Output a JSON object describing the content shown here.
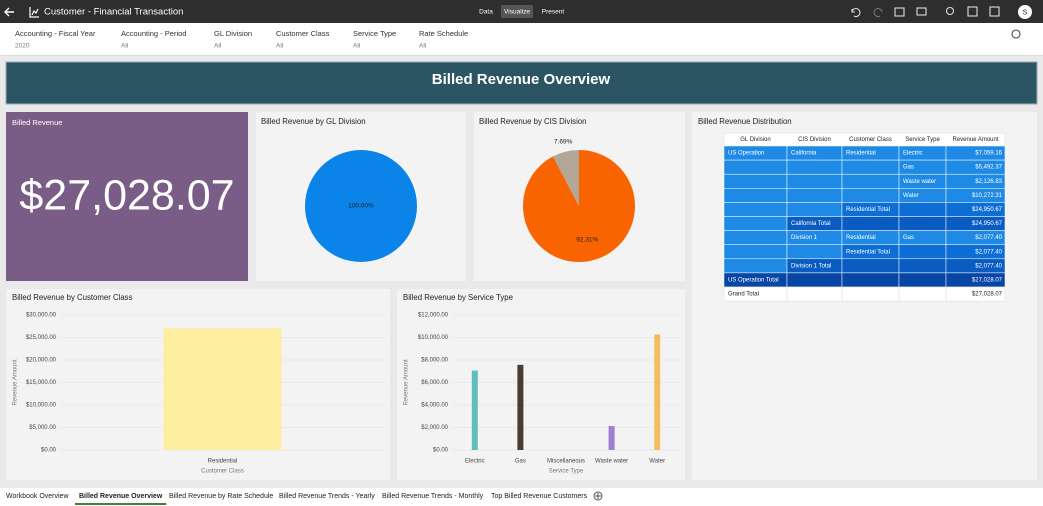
{
  "header": {
    "title": "Customer - Financial Transaction",
    "tabs": [
      "Data",
      "Visualize",
      "Present"
    ],
    "active_tab": 1,
    "user_initial": "S"
  },
  "filters": [
    {
      "label": "Accounting - Fiscal Year",
      "value": "2020"
    },
    {
      "label": "Accounting - Period",
      "value": "All"
    },
    {
      "label": "GL Division",
      "value": "All"
    },
    {
      "label": "Customer Class",
      "value": "All"
    },
    {
      "label": "Service Type",
      "value": "All"
    },
    {
      "label": "Rate Schedule",
      "value": "All"
    }
  ],
  "banner": "Billed Revenue Overview",
  "kpi": {
    "title": "Billed Revenue",
    "value": "$27,028.07"
  },
  "chart_data": [
    {
      "type": "pie",
      "title": "Billed Revenue by GL Division",
      "values": [
        100
      ],
      "value_labels": [
        "100.00%"
      ],
      "colors": [
        "#0a84e8"
      ]
    },
    {
      "type": "pie",
      "title": "Billed Revenue by CIS Division",
      "values": [
        92.31,
        7.69
      ],
      "value_labels": [
        "92.31%",
        "7.69%"
      ],
      "colors": [
        "#fa6400",
        "#b3a898"
      ]
    },
    {
      "type": "bar",
      "title": "Billed Revenue by Customer Class",
      "x_label": "Customer Class",
      "y_label": "Revenue Amount",
      "categories": [
        "Residential"
      ],
      "values": [
        27028.07
      ],
      "colors": [
        "#fdeea0"
      ],
      "ylim": [
        0,
        30000
      ],
      "yticks": [
        {
          "value": 0,
          "label": "$0.00"
        },
        {
          "value": 5000,
          "label": "$5,000.00"
        },
        {
          "value": 10000,
          "label": "$10,000.00"
        },
        {
          "value": 15000,
          "label": "$15,000.00"
        },
        {
          "value": 20000,
          "label": "$20,000.00"
        },
        {
          "value": 25000,
          "label": "$25,000.00"
        },
        {
          "value": 30000,
          "label": "$30,000.00"
        }
      ]
    },
    {
      "type": "bar",
      "title": "Billed Revenue by Service Type",
      "x_label": "Service Type",
      "y_label": "Revenue Amount",
      "categories": [
        "Electric",
        "Gas",
        "Miscellaneous",
        "Waste water",
        "Water"
      ],
      "values": [
        7059.16,
        7569.77,
        0,
        2126.83,
        10272.31
      ],
      "colors": [
        "#5fbfbf",
        "#4a3c31",
        "#cccccc",
        "#9c7fd1",
        "#f6bd60"
      ],
      "ylim": [
        0,
        12000
      ],
      "yticks": [
        {
          "value": 0,
          "label": "$0.00"
        },
        {
          "value": 2000,
          "label": "$2,000.00"
        },
        {
          "value": 4000,
          "label": "$4,000.00"
        },
        {
          "value": 6000,
          "label": "$6,000.00"
        },
        {
          "value": 8000,
          "label": "$8,000.00"
        },
        {
          "value": 10000,
          "label": "$10,000.00"
        },
        {
          "value": 12000,
          "label": "$12,000.00"
        }
      ]
    }
  ],
  "table": {
    "title": "Billed Revenue Distribution",
    "columns": [
      "GL Division",
      "CIS Division",
      "Customer Class",
      "Service Type",
      "Revenue Amount"
    ],
    "rows": [
      [
        "US Operation",
        "California",
        "Residential",
        "Electric",
        "$7,059.16"
      ],
      [
        null,
        null,
        null,
        "Gas",
        "$5,492.37"
      ],
      [
        null,
        null,
        null,
        "Waste water",
        "$2,126.83"
      ],
      [
        null,
        null,
        null,
        "Water",
        "$10,272.31"
      ],
      [
        null,
        null,
        "Residential Total",
        null,
        "$24,950.67"
      ],
      [
        null,
        "California Total",
        null,
        null,
        "$24,950.67"
      ],
      [
        null,
        "Division 1",
        "Residential",
        "Gas",
        "$2,077.40"
      ],
      [
        null,
        null,
        "Residential Total",
        null,
        "$2,077.40"
      ],
      [
        null,
        "Division 1 Total",
        null,
        null,
        "$2,077.40"
      ],
      [
        "US Operation Total",
        null,
        null,
        null,
        "$27,028.07"
      ],
      [
        "Grand Total",
        null,
        null,
        null,
        "$27,028.07"
      ]
    ]
  },
  "bottom_tabs": {
    "tabs": [
      "Workbook Overview",
      "Billed Revenue Overview",
      "Billed Revenue by Rate Schedule",
      "Billed Revenue Trends - Yearly",
      "Billed Revenue Trends - Monthly",
      "Top Billed Revenue Customers"
    ],
    "active": 1
  }
}
